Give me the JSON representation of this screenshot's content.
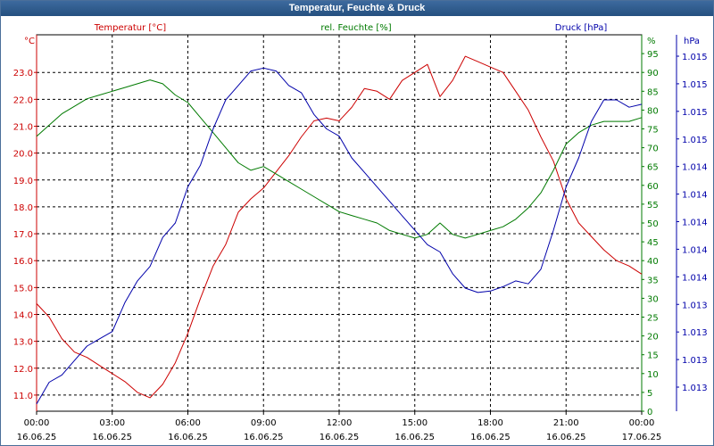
{
  "window": {
    "title": "Temperatur, Feuchte & Druck"
  },
  "colors": {
    "temperature": "#cc0000",
    "humidity": "#007a00",
    "pressure": "#0000aa",
    "grid": "#000000"
  },
  "chart_data": {
    "type": "line",
    "title": "Temperatur, Feuchte & Druck",
    "grid": true,
    "x_hours": [
      0,
      3,
      6,
      9,
      12,
      15,
      18,
      21,
      24
    ],
    "x_tick_times": [
      "00:00",
      "03:00",
      "06:00",
      "09:00",
      "12:00",
      "15:00",
      "18:00",
      "21:00",
      "00:00"
    ],
    "x_tick_dates": [
      "16.06.25",
      "16.06.25",
      "16.06.25",
      "16.06.25",
      "16.06.25",
      "16.06.25",
      "16.06.25",
      "16.06.25",
      "17.06.25"
    ],
    "axes": {
      "temperature": {
        "label": "Temperatur [°C]",
        "unit": "°C",
        "ylim": [
          10.4,
          24.4
        ],
        "ticks": [
          "23.0",
          "22.0",
          "21.0",
          "20.0",
          "19.0",
          "18.0",
          "17.0",
          "16.0",
          "15.0",
          "14.0",
          "13.0",
          "12.0",
          "11.0"
        ]
      },
      "humidity": {
        "label": "rel. Feuchte [%]",
        "unit": "%",
        "ylim": [
          0,
          100
        ],
        "ticks": [
          "95",
          "90",
          "85",
          "80",
          "75",
          "70",
          "65",
          "60",
          "55",
          "50",
          "45",
          "40",
          "35",
          "30",
          "25",
          "20",
          "15",
          "10",
          "5",
          "0"
        ]
      },
      "pressure": {
        "label": "Druck [hPa]",
        "unit": "hPa",
        "ylim": [
          1012.8,
          1015.4
        ],
        "ticks": [
          "1.015",
          "1.015",
          "1.015",
          "1.015",
          "1.014",
          "1.014",
          "1.014",
          "1.014",
          "1.014",
          "1.013",
          "1.013",
          "1.013",
          "1.013"
        ]
      }
    },
    "series": [
      {
        "name": "Temperatur [°C]",
        "axis": "temperature",
        "x": [
          0,
          0.5,
          1,
          1.5,
          2,
          2.5,
          3,
          3.5,
          4,
          4.5,
          5,
          5.5,
          6,
          6.5,
          7,
          7.5,
          8,
          8.5,
          9,
          9.5,
          10,
          10.5,
          11,
          11.5,
          12,
          12.5,
          13,
          13.5,
          14,
          14.5,
          15,
          15.5,
          16,
          16.5,
          17,
          17.5,
          18,
          18.5,
          19,
          19.5,
          20,
          20.5,
          21,
          21.5,
          22,
          22.5,
          23,
          23.5,
          24
        ],
        "values": [
          14.4,
          13.9,
          13.1,
          12.6,
          12.4,
          12.1,
          11.8,
          11.5,
          11.1,
          10.9,
          11.4,
          12.2,
          13.3,
          14.6,
          15.8,
          16.6,
          17.8,
          18.3,
          18.7,
          19.3,
          19.9,
          20.6,
          21.2,
          21.3,
          21.2,
          21.7,
          22.4,
          22.3,
          22.0,
          22.7,
          23.0,
          23.3,
          22.1,
          22.7,
          23.6,
          23.4,
          23.2,
          23.0,
          22.3,
          21.6,
          20.6,
          19.7,
          18.3,
          17.4,
          16.9,
          16.4,
          16.0,
          15.8,
          15.5
        ]
      },
      {
        "name": "rel. Feuchte [%]",
        "axis": "humidity",
        "x": [
          0,
          0.5,
          1,
          1.5,
          2,
          2.5,
          3,
          3.5,
          4,
          4.5,
          5,
          5.5,
          6,
          6.5,
          7,
          7.5,
          8,
          8.5,
          9,
          9.5,
          10,
          10.5,
          11,
          11.5,
          12,
          12.5,
          13,
          13.5,
          14,
          14.5,
          15,
          15.5,
          16,
          16.5,
          17,
          17.5,
          18,
          18.5,
          19,
          19.5,
          20,
          20.5,
          21,
          21.5,
          22,
          22.5,
          23,
          23.5,
          24
        ],
        "values": [
          73,
          76,
          79,
          81,
          83,
          84,
          85,
          86,
          87,
          88,
          87,
          84,
          82,
          78,
          74,
          70,
          66,
          64,
          65,
          63,
          61,
          59,
          57,
          55,
          53,
          52,
          51,
          50,
          48,
          47,
          46,
          47,
          50,
          47,
          46,
          47,
          48,
          49,
          51,
          54,
          58,
          64,
          71,
          74,
          76,
          77,
          77,
          77,
          78
        ]
      },
      {
        "name": "Druck [hPa]",
        "axis": "pressure",
        "x": [
          0,
          0.5,
          1,
          1.5,
          2,
          2.5,
          3,
          3.5,
          4,
          4.5,
          5,
          5.5,
          6,
          6.5,
          7,
          7.5,
          8,
          8.5,
          9,
          9.5,
          10,
          10.5,
          11,
          11.5,
          12,
          12.5,
          13,
          13.5,
          14,
          14.5,
          15,
          15.5,
          16,
          16.5,
          17,
          17.5,
          18,
          18.5,
          19,
          19.5,
          20,
          20.5,
          21,
          21.5,
          22,
          22.5,
          23,
          23.5,
          24
        ],
        "values": [
          1012.85,
          1013.0,
          1013.05,
          1013.15,
          1013.25,
          1013.3,
          1013.35,
          1013.55,
          1013.7,
          1013.8,
          1014.0,
          1014.1,
          1014.35,
          1014.5,
          1014.75,
          1014.95,
          1015.05,
          1015.15,
          1015.17,
          1015.15,
          1015.05,
          1015.0,
          1014.85,
          1014.75,
          1014.7,
          1014.55,
          1014.45,
          1014.35,
          1014.25,
          1014.15,
          1014.05,
          1013.95,
          1013.9,
          1013.75,
          1013.65,
          1013.62,
          1013.63,
          1013.66,
          1013.7,
          1013.68,
          1013.78,
          1014.05,
          1014.35,
          1014.55,
          1014.8,
          1014.95,
          1014.95,
          1014.9,
          1014.92
        ]
      }
    ]
  }
}
